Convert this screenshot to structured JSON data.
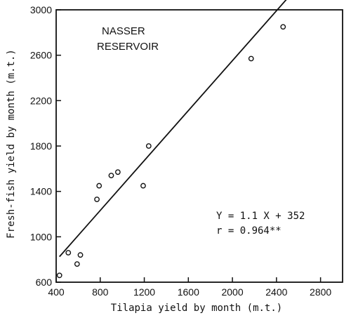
{
  "chart_data": {
    "type": "scatter",
    "title": "",
    "xlabel": "Tilapia yield by month (m.t.)",
    "ylabel": "Fresh-fish yield by month (m.t.)",
    "xlim": [
      400,
      3000
    ],
    "ylim": [
      600,
      3000
    ],
    "x_ticks": [
      400,
      800,
      1200,
      1600,
      2000,
      2400,
      2800
    ],
    "y_ticks": [
      600,
      1000,
      1400,
      1800,
      2200,
      2600,
      3000
    ],
    "points": [
      {
        "x": 430,
        "y": 660
      },
      {
        "x": 510,
        "y": 860
      },
      {
        "x": 590,
        "y": 760
      },
      {
        "x": 620,
        "y": 840
      },
      {
        "x": 770,
        "y": 1330
      },
      {
        "x": 790,
        "y": 1450
      },
      {
        "x": 900,
        "y": 1540
      },
      {
        "x": 960,
        "y": 1570
      },
      {
        "x": 1190,
        "y": 1450
      },
      {
        "x": 1240,
        "y": 1800
      },
      {
        "x": 2170,
        "y": 2570
      },
      {
        "x": 2460,
        "y": 2850
      }
    ],
    "regression": {
      "slope": 1.1,
      "intercept": 352,
      "x_start": 430,
      "x_end": 2490
    },
    "annotations": {
      "label_line1": "NASSER",
      "label_line2": "RESERVOIR",
      "equation": "Y = 1.1 X + 352",
      "r_value": "r = 0.964**"
    },
    "grid": false,
    "legend": "none"
  }
}
